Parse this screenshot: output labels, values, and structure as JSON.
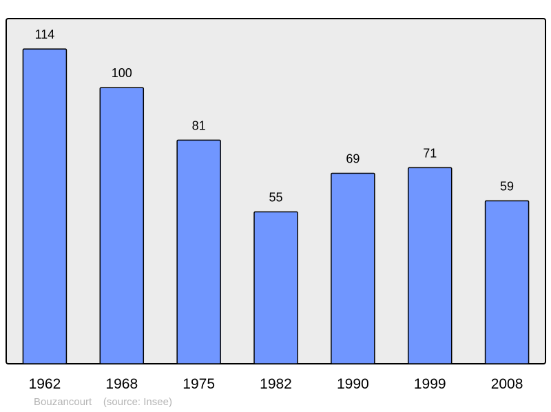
{
  "chart_data": {
    "type": "bar",
    "categories": [
      "1962",
      "1968",
      "1975",
      "1982",
      "1990",
      "1999",
      "2008"
    ],
    "values": [
      114,
      100,
      81,
      55,
      69,
      71,
      59
    ],
    "title": "",
    "xlabel": "",
    "ylabel": "",
    "ylim": [
      0,
      125
    ],
    "grid": false,
    "data_labels": true,
    "colors": {
      "bar": "#7096ff",
      "plot_bg": "#ececec",
      "border": "#000000"
    }
  },
  "footer": {
    "place": "Bouzancourt",
    "source": "(source: Insee)"
  }
}
